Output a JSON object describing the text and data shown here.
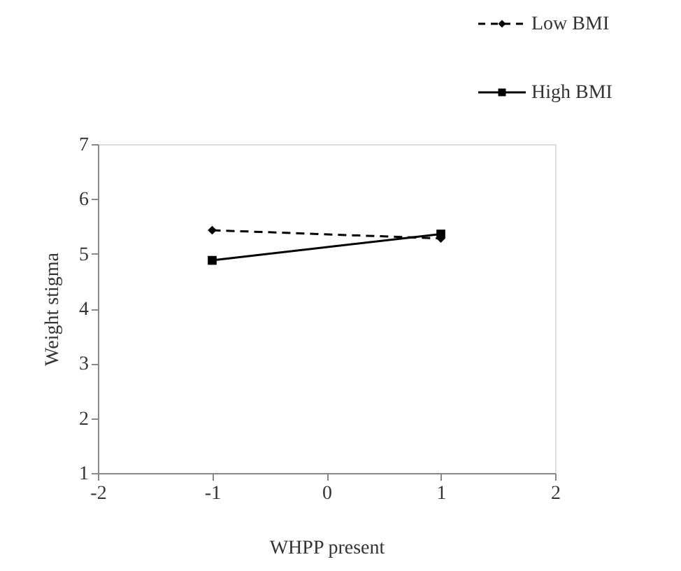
{
  "chart_data": {
    "type": "line",
    "xlabel": "WHPP present",
    "ylabel": "Weight stigma",
    "x": [
      -1,
      1
    ],
    "series": [
      {
        "name": "Low BMI",
        "color": "#000000",
        "values": [
          5.43,
          5.28
        ],
        "marker": "diamond",
        "line_style": "dashed"
      },
      {
        "name": "High BMI",
        "color": "#000000",
        "values": [
          4.88,
          5.36
        ],
        "marker": "square",
        "line_style": "solid"
      }
    ],
    "xlim": [
      -2,
      2
    ],
    "xticks": [
      -2,
      -1,
      0,
      1,
      2
    ],
    "ylim": [
      1,
      7
    ],
    "yticks": [
      1,
      2,
      3,
      4,
      5,
      6,
      7
    ],
    "grid": false,
    "legend": "top right"
  }
}
